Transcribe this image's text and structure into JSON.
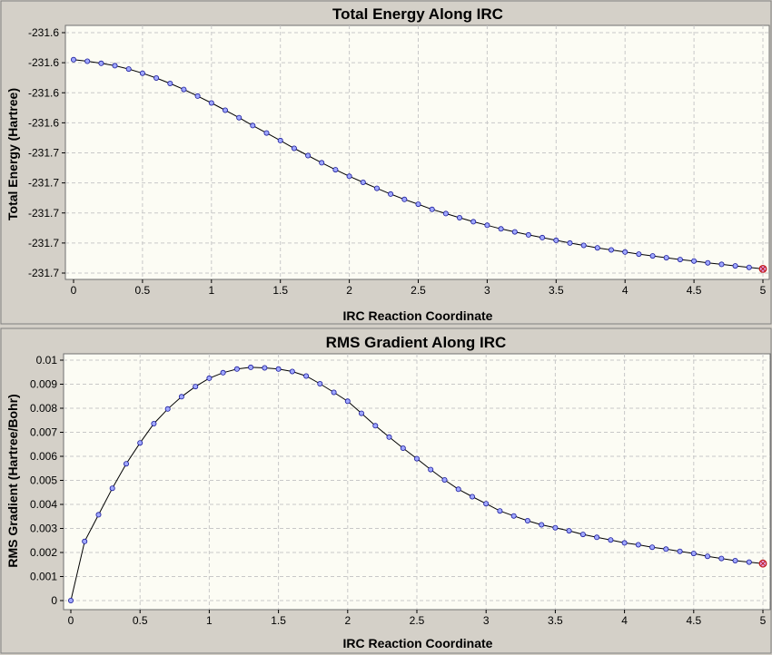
{
  "chart_data": [
    {
      "type": "line",
      "title": "Total Energy Along IRC",
      "xlabel": "IRC Reaction Coordinate",
      "ylabel": "Total Energy (Hartree)",
      "x_ticks": [
        "0",
        "0.5",
        "1",
        "1.5",
        "2",
        "2.5",
        "3",
        "3.5",
        "4",
        "4.5",
        "5"
      ],
      "y_ticks": [
        "-231.6",
        "-231.6",
        "-231.6",
        "-231.6",
        "-231.7",
        "-231.7",
        "-231.7",
        "-231.7",
        "-231.7"
      ],
      "xlim": [
        0,
        5
      ],
      "ylim": [
        -231.68,
        -231.6
      ],
      "grid": true,
      "legend": "none",
      "series": [
        {
          "x": [
            0,
            0.1,
            0.2,
            0.3,
            0.4,
            0.5,
            0.6,
            0.7,
            0.8,
            0.9,
            1.0,
            1.1,
            1.2,
            1.3,
            1.4,
            1.5,
            1.6,
            1.7,
            1.8,
            1.9,
            2.0,
            2.1,
            2.2,
            2.3,
            2.4,
            2.5,
            2.6,
            2.7,
            2.8,
            2.9,
            3.0,
            3.1,
            3.2,
            3.3,
            3.4,
            3.5,
            3.6,
            3.7,
            3.8,
            3.9,
            4.0,
            4.1,
            4.2,
            4.3,
            4.4,
            4.5,
            4.6,
            4.7,
            4.8,
            4.9,
            5.0
          ],
          "y": [
            -231.609,
            -231.6095,
            -231.6102,
            -231.611,
            -231.6121,
            -231.6135,
            -231.6151,
            -231.6169,
            -231.6189,
            -231.6211,
            -231.6234,
            -231.6258,
            -231.6283,
            -231.6309,
            -231.6334,
            -231.6359,
            -231.6385,
            -231.6409,
            -231.6433,
            -231.6456,
            -231.6478,
            -231.6498,
            -231.6518,
            -231.6537,
            -231.6555,
            -231.6571,
            -231.6588,
            -231.6602,
            -231.6616,
            -231.6629,
            -231.6641,
            -231.6653,
            -231.6663,
            -231.6673,
            -231.6682,
            -231.6691,
            -231.67,
            -231.6708,
            -231.6716,
            -231.6723,
            -231.673,
            -231.6737,
            -231.6743,
            -231.6749,
            -231.6755,
            -231.676,
            -231.6766,
            -231.6771,
            -231.6776,
            -231.6781,
            -231.6786
          ]
        }
      ]
    },
    {
      "type": "line",
      "title": "RMS Gradient Along IRC",
      "xlabel": "IRC Reaction Coordinate",
      "ylabel": "RMS Gradient (Hartree/Bohr)",
      "x_ticks": [
        "0",
        "0.5",
        "1",
        "1.5",
        "2",
        "2.5",
        "3",
        "3.5",
        "4",
        "4.5",
        "5"
      ],
      "y_ticks": [
        "0",
        "0.001",
        "0.002",
        "0.003",
        "0.004",
        "0.005",
        "0.006",
        "0.007",
        "0.008",
        "0.009",
        "0.01"
      ],
      "xlim": [
        0,
        5
      ],
      "ylim": [
        0,
        0.01
      ],
      "grid": true,
      "legend": "none",
      "series": [
        {
          "x": [
            0,
            0.1,
            0.2,
            0.3,
            0.4,
            0.5,
            0.6,
            0.7,
            0.8,
            0.9,
            1.0,
            1.1,
            1.2,
            1.3,
            1.4,
            1.5,
            1.6,
            1.7,
            1.8,
            1.9,
            2.0,
            2.1,
            2.2,
            2.3,
            2.4,
            2.5,
            2.6,
            2.7,
            2.8,
            2.9,
            3.0,
            3.1,
            3.2,
            3.3,
            3.4,
            3.5,
            3.6,
            3.7,
            3.8,
            3.9,
            4.0,
            4.1,
            4.2,
            4.3,
            4.4,
            4.5,
            4.6,
            4.7,
            4.8,
            4.9,
            5.0
          ],
          "y": [
            0.0,
            0.00246,
            0.00357,
            0.00467,
            0.00569,
            0.00656,
            0.00736,
            0.00797,
            0.00848,
            0.0089,
            0.00925,
            0.00948,
            0.00963,
            0.0097,
            0.00968,
            0.00963,
            0.00953,
            0.00934,
            0.00902,
            0.00866,
            0.00829,
            0.00779,
            0.00727,
            0.0068,
            0.00634,
            0.0059,
            0.00545,
            0.00502,
            0.00463,
            0.00432,
            0.00403,
            0.00373,
            0.00352,
            0.00332,
            0.00315,
            0.00303,
            0.0029,
            0.00275,
            0.00263,
            0.00252,
            0.0024,
            0.00232,
            0.00222,
            0.00214,
            0.00205,
            0.00196,
            0.00184,
            0.00175,
            0.00166,
            0.0016,
            0.00154
          ]
        }
      ]
    }
  ]
}
